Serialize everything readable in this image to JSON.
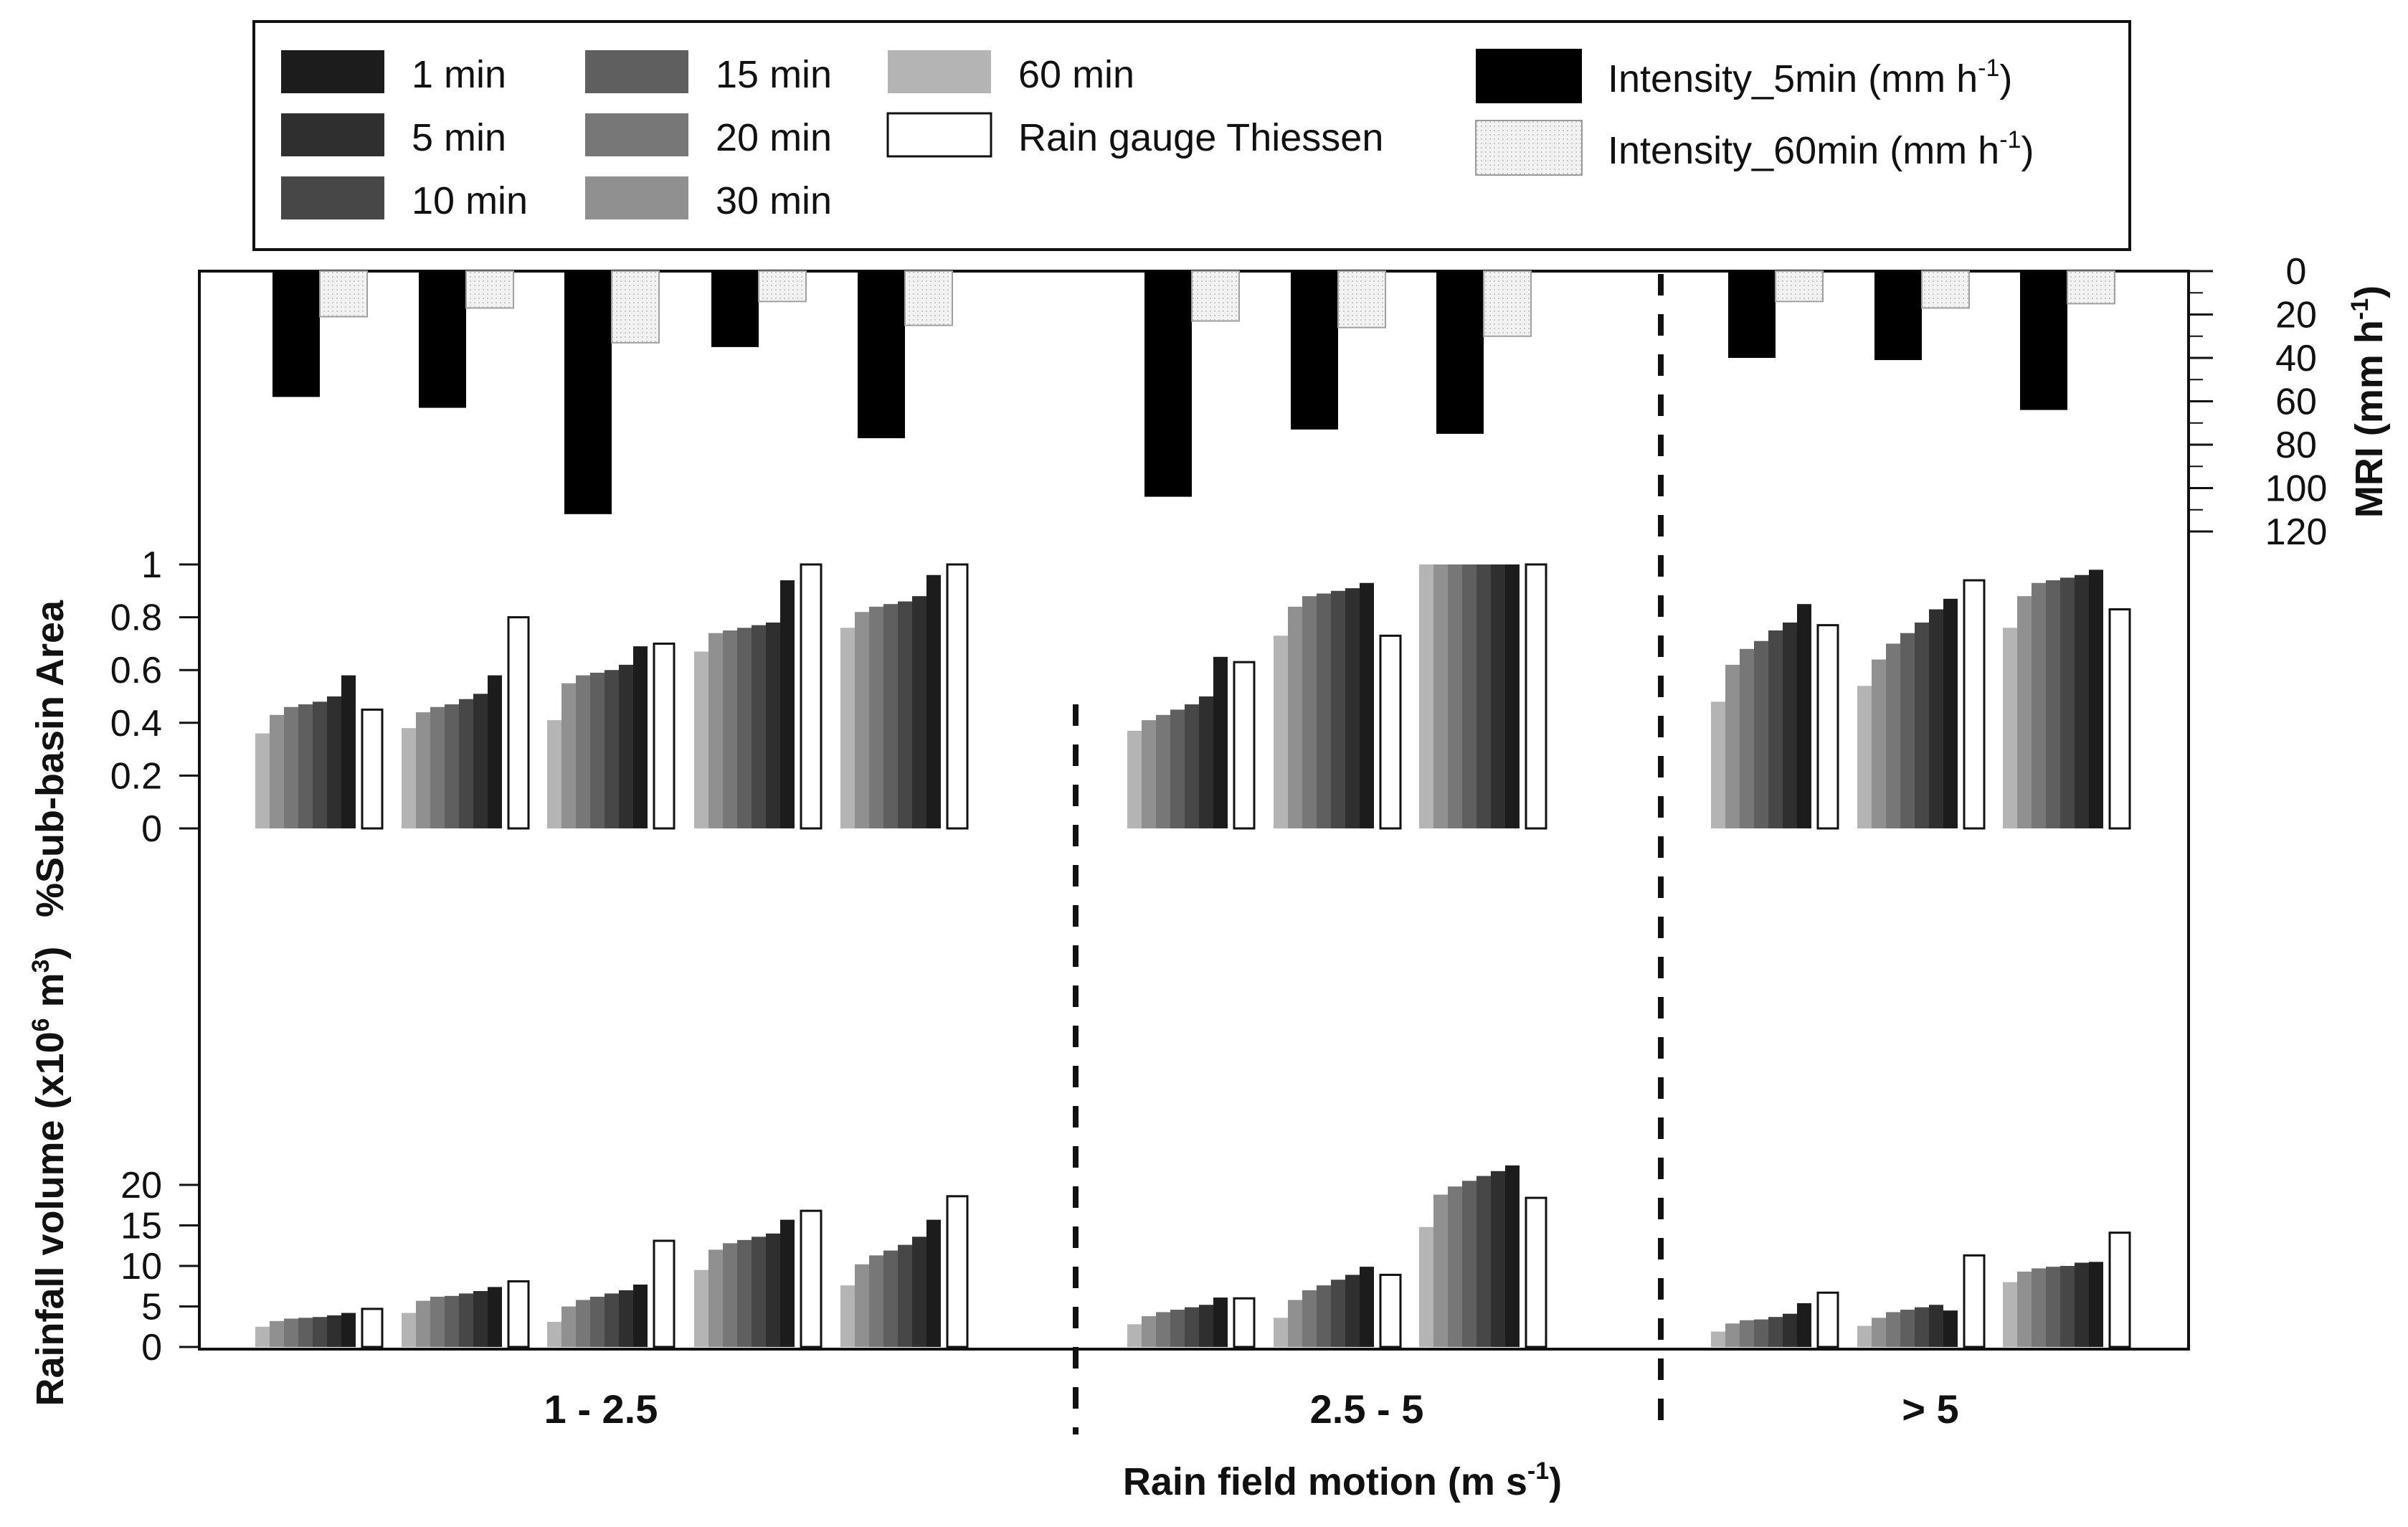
{
  "chart_data": {
    "type": "bar",
    "legend": {
      "durations": [
        {
          "label": "1 min",
          "color": "#1c1c1c"
        },
        {
          "label": "5 min",
          "color": "#2f2f2f"
        },
        {
          "label": "10 min",
          "color": "#474747"
        },
        {
          "label": "15 min",
          "color": "#5f5f5f"
        },
        {
          "label": "20 min",
          "color": "#777777"
        },
        {
          "label": "30 min",
          "color": "#909090"
        },
        {
          "label": "60 min",
          "color": "#b4b4b4"
        }
      ],
      "gauge": {
        "label": "Rain gauge Thiessen",
        "color": "#ffffff"
      },
      "intensity5": {
        "label": "Intensity_5min (mm h",
        "sup": "-1",
        "close": ")",
        "color": "#000000"
      },
      "intensity60": {
        "label": "Intensity_60min (mm h",
        "sup": "-1",
        "close": ")",
        "color": "#ececec"
      }
    },
    "groups": [
      {
        "label": "1 - 2.5",
        "events": 5
      },
      {
        "label": "2.5 - 5",
        "events": 3
      },
      {
        "label": "> 5",
        "events": 3
      }
    ],
    "x_axis": {
      "label": "Rain field motion (m s",
      "sup": "-1",
      "close": ")"
    },
    "mri_axis": {
      "label": "MRI (mm h",
      "sup": "-1",
      "close": ")",
      "ticks": [
        0,
        20,
        40,
        60,
        80,
        100,
        120
      ],
      "range": [
        0,
        120
      ]
    },
    "area_axis": {
      "label": "%Sub-basin Area",
      "ticks": [
        "0",
        "0.2",
        "0.4",
        "0.6",
        "0.8",
        "1"
      ],
      "range": [
        0,
        1
      ]
    },
    "volume_axis": {
      "label_pre": "Rainfall volume (x10",
      "label_sup": "6",
      "label_mid": " m",
      "label_sup2": "3",
      "label_post": ")",
      "ticks": [
        "0",
        "5",
        "10",
        "15",
        "20"
      ],
      "range": [
        0,
        22
      ]
    },
    "series_order": [
      "60 min",
      "30 min",
      "20 min",
      "15 min",
      "10 min",
      "5 min",
      "1 min"
    ],
    "intensity_5min": [
      58,
      63,
      112,
      35,
      77,
      104,
      73,
      75,
      40,
      41,
      64
    ],
    "intensity_60min": [
      21,
      17,
      33,
      14,
      25,
      23,
      26,
      30,
      14,
      17,
      15
    ],
    "sub_basin_area": [
      [
        0.36,
        0.43,
        0.46,
        0.47,
        0.48,
        0.5,
        0.58
      ],
      [
        0.38,
        0.44,
        0.46,
        0.47,
        0.49,
        0.51,
        0.58
      ],
      [
        0.41,
        0.55,
        0.58,
        0.59,
        0.6,
        0.62,
        0.69
      ],
      [
        0.67,
        0.74,
        0.75,
        0.76,
        0.77,
        0.78,
        0.94
      ],
      [
        0.76,
        0.82,
        0.84,
        0.85,
        0.86,
        0.88,
        0.96
      ],
      [
        0.37,
        0.41,
        0.43,
        0.45,
        0.47,
        0.5,
        0.65
      ],
      [
        0.73,
        0.84,
        0.88,
        0.89,
        0.9,
        0.91,
        0.93
      ],
      [
        1.0,
        1.0,
        1.0,
        1.0,
        1.0,
        1.0,
        1.0
      ],
      [
        0.48,
        0.62,
        0.68,
        0.71,
        0.75,
        0.78,
        0.85
      ],
      [
        0.54,
        0.64,
        0.7,
        0.74,
        0.78,
        0.83,
        0.87
      ],
      [
        0.76,
        0.88,
        0.93,
        0.94,
        0.95,
        0.96,
        0.98
      ]
    ],
    "sub_basin_area_gauge": [
      0.45,
      0.8,
      0.7,
      1.0,
      1.0,
      0.63,
      0.73,
      1.0,
      0.77,
      0.94,
      0.83
    ],
    "rainfall_volume": [
      [
        2.5,
        3.2,
        3.5,
        3.6,
        3.7,
        3.9,
        4.2
      ],
      [
        4.2,
        5.7,
        6.2,
        6.3,
        6.6,
        6.9,
        7.4
      ],
      [
        3.1,
        5.0,
        5.8,
        6.2,
        6.6,
        7.0,
        7.7
      ],
      [
        9.5,
        12.0,
        12.8,
        13.2,
        13.6,
        14.0,
        15.7
      ],
      [
        7.6,
        10.2,
        11.3,
        11.9,
        12.6,
        13.6,
        15.7
      ],
      [
        2.8,
        3.8,
        4.3,
        4.6,
        4.9,
        5.2,
        6.1
      ],
      [
        3.6,
        5.8,
        7.0,
        7.6,
        8.3,
        8.9,
        9.9
      ],
      [
        14.8,
        18.8,
        19.8,
        20.5,
        21.1,
        21.7,
        22.4
      ],
      [
        1.9,
        2.9,
        3.3,
        3.4,
        3.7,
        4.1,
        5.4
      ],
      [
        2.6,
        3.6,
        4.3,
        4.6,
        4.9,
        5.2,
        4.5
      ],
      [
        8.0,
        9.3,
        9.7,
        9.9,
        10.0,
        10.4,
        10.5
      ]
    ],
    "rainfall_volume_gauge": [
      4.7,
      8.1,
      13.1,
      16.8,
      18.6,
      6.0,
      8.9,
      18.4,
      6.7,
      11.3,
      14.1
    ]
  }
}
